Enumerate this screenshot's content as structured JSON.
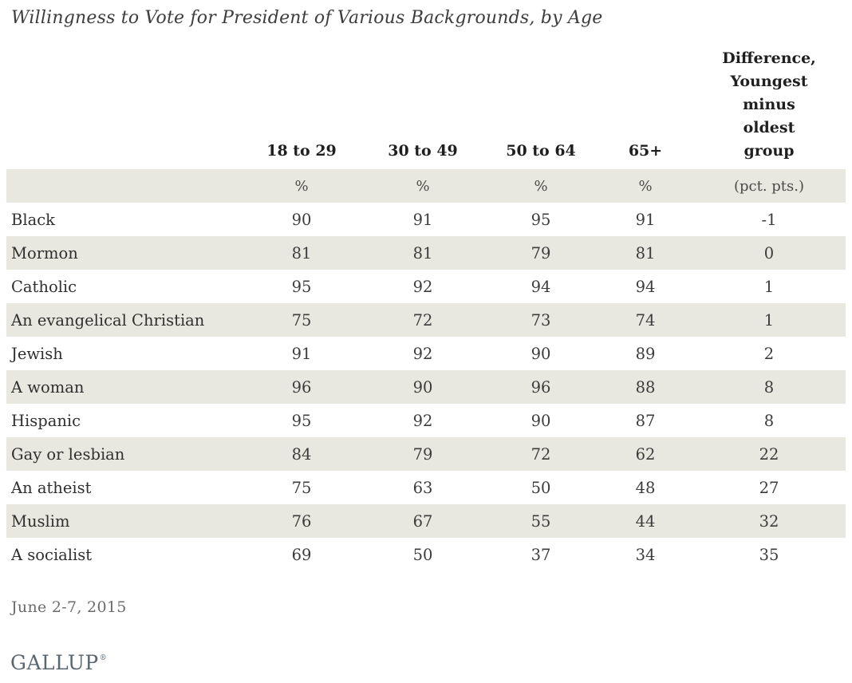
{
  "header": {
    "title": "Willingness to Vote for President of Various Backgrounds, by Age"
  },
  "chart_data": {
    "type": "table",
    "title": "Willingness to Vote for President of Various Backgrounds, by Age",
    "columns": [
      "18 to 29",
      "30 to 49",
      "50 to 64",
      "65+",
      "Difference, Youngest minus oldest group"
    ],
    "unit_row": [
      "%",
      "%",
      "%",
      "%",
      "(pct. pts.)"
    ],
    "rows": [
      {
        "label": "Black",
        "values": [
          90,
          91,
          95,
          91,
          -1
        ]
      },
      {
        "label": "Mormon",
        "values": [
          81,
          81,
          79,
          81,
          0
        ]
      },
      {
        "label": "Catholic",
        "values": [
          95,
          92,
          94,
          94,
          1
        ]
      },
      {
        "label": "An evangelical Christian",
        "values": [
          75,
          72,
          73,
          74,
          1
        ]
      },
      {
        "label": "Jewish",
        "values": [
          91,
          92,
          90,
          89,
          2
        ]
      },
      {
        "label": "A woman",
        "values": [
          96,
          90,
          96,
          88,
          8
        ]
      },
      {
        "label": "Hispanic",
        "values": [
          95,
          92,
          90,
          87,
          8
        ]
      },
      {
        "label": "Gay or lesbian",
        "values": [
          84,
          79,
          72,
          62,
          22
        ]
      },
      {
        "label": "An atheist",
        "values": [
          75,
          63,
          50,
          48,
          27
        ]
      },
      {
        "label": "Muslim",
        "values": [
          76,
          67,
          55,
          44,
          32
        ]
      },
      {
        "label": "A socialist",
        "values": [
          69,
          50,
          37,
          34,
          35
        ]
      }
    ],
    "layout": {
      "row_stripes": true,
      "stripe_color": "#e9e8e0",
      "grid": false,
      "legend_position": "none"
    }
  },
  "footer": {
    "date": "June 2-7, 2015",
    "brand": "GALLUP",
    "brand_mark": "®"
  }
}
